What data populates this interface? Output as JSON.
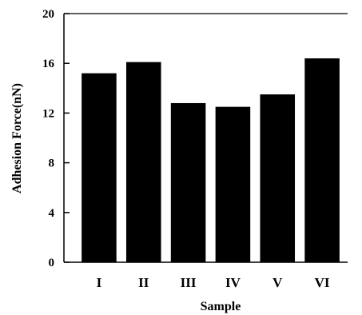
{
  "chart_data": {
    "type": "bar",
    "categories": [
      "I",
      "II",
      "III",
      "IV",
      "V",
      "VI"
    ],
    "values": [
      15.2,
      16.1,
      12.8,
      12.5,
      13.5,
      16.4
    ],
    "xlabel": "Sample",
    "ylabel": "Adhesion Force(nN)",
    "ylim": [
      0,
      20
    ],
    "yticks": [
      0,
      4,
      8,
      12,
      16,
      20
    ],
    "grid": false,
    "bar_color": "#000000"
  }
}
